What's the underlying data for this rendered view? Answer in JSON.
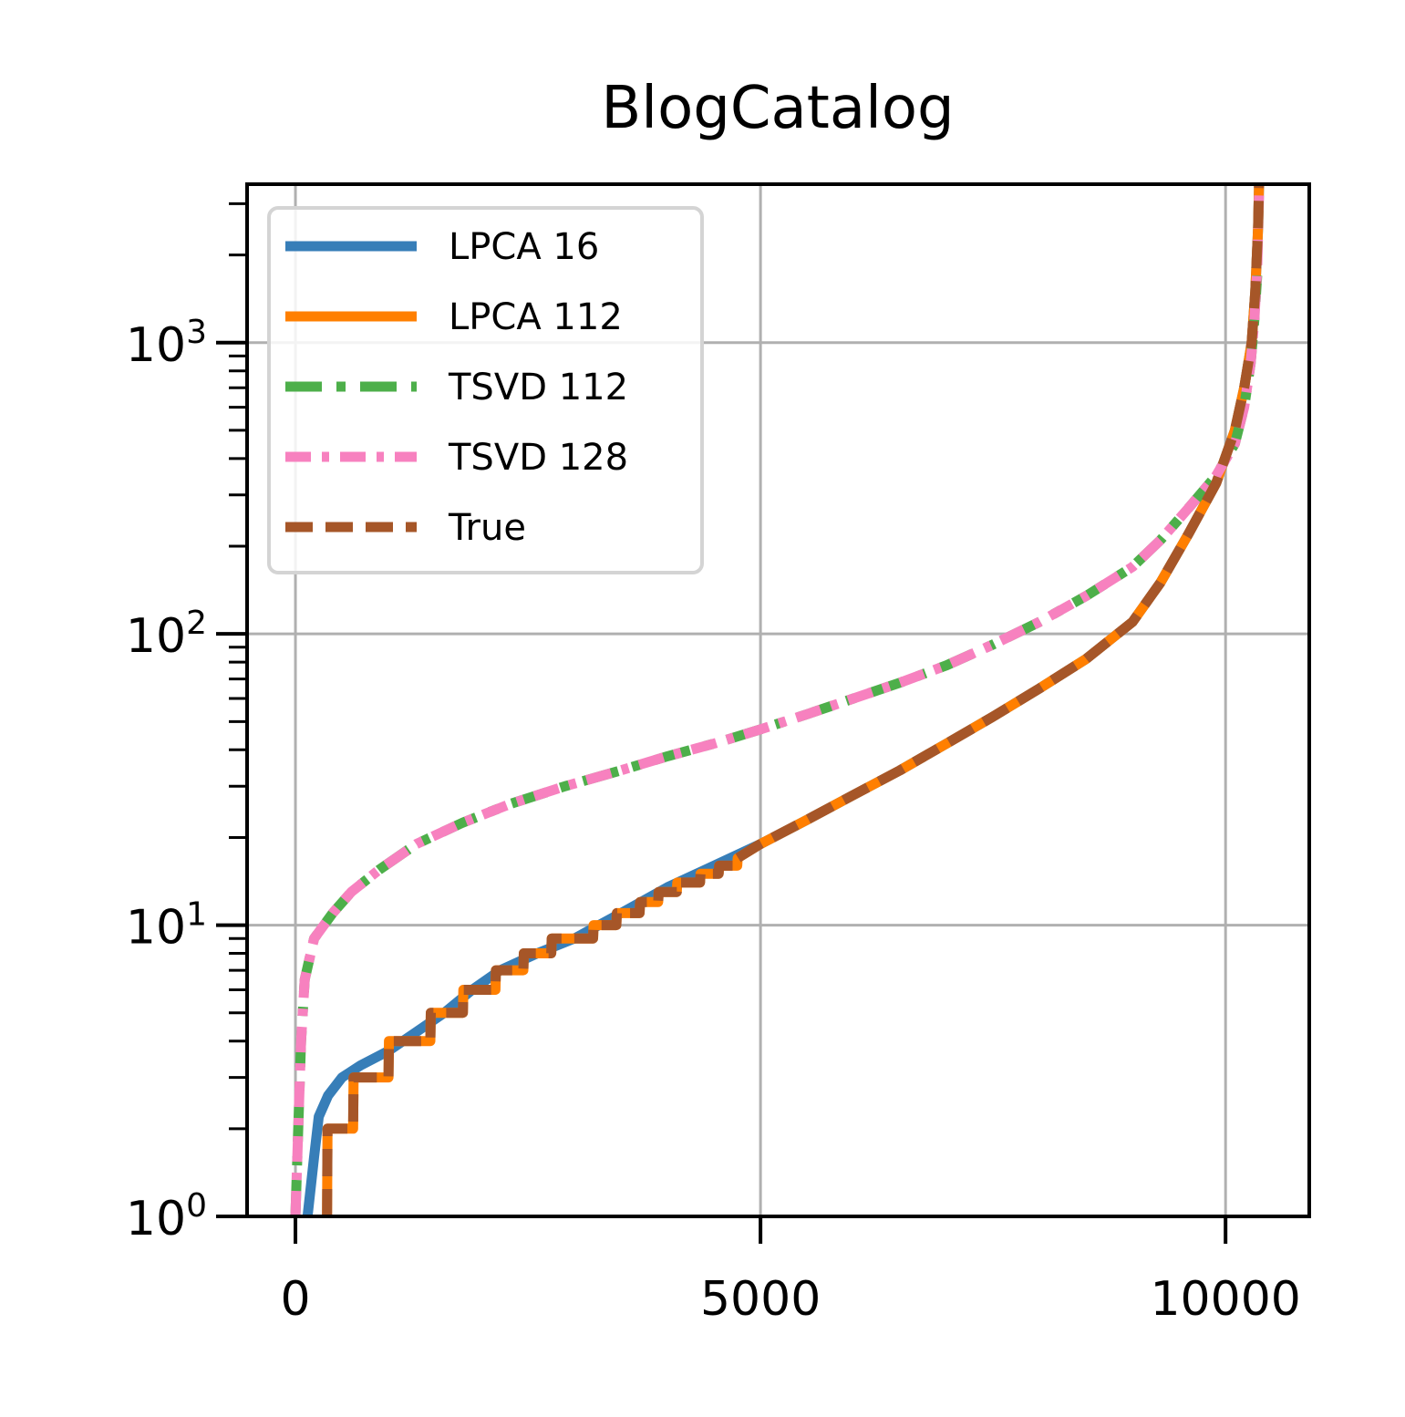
{
  "chart_data": {
    "type": "line",
    "title": "BlogCatalog",
    "xlabel": "",
    "ylabel": "",
    "xlim": [
      -520,
      10900
    ],
    "ylim": [
      1,
      3500
    ],
    "yscale": "log",
    "grid": true,
    "legend_position": "top-left",
    "x_ticks": [
      0,
      5000,
      10000
    ],
    "x_tick_labels": [
      "0",
      "5000",
      "10000"
    ],
    "y_ticks": [
      1,
      10,
      100,
      1000
    ],
    "y_tick_labels": [
      {
        "base": "10",
        "exp": "0"
      },
      {
        "base": "10",
        "exp": "1"
      },
      {
        "base": "10",
        "exp": "2"
      },
      {
        "base": "10",
        "exp": "3"
      }
    ],
    "series": [
      {
        "name": "LPCA 16",
        "color": "#377eb8",
        "dash": "solid",
        "step": false,
        "points": [
          [
            130,
            1
          ],
          [
            200,
            1.6
          ],
          [
            250,
            2.2
          ],
          [
            350,
            2.6
          ],
          [
            500,
            3.0
          ],
          [
            700,
            3.3
          ],
          [
            1000,
            3.7
          ],
          [
            1300,
            4.3
          ],
          [
            1600,
            5.0
          ],
          [
            1900,
            6.0
          ],
          [
            2200,
            7.0
          ],
          [
            2600,
            8.0
          ],
          [
            3000,
            9.0
          ],
          [
            3500,
            11
          ],
          [
            4000,
            13.5
          ],
          [
            4500,
            16
          ],
          [
            5000,
            19
          ],
          [
            5500,
            23
          ],
          [
            6000,
            28
          ],
          [
            6500,
            34
          ],
          [
            7000,
            42
          ],
          [
            7500,
            52
          ],
          [
            8000,
            65
          ],
          [
            8500,
            82
          ],
          [
            9000,
            110
          ],
          [
            9300,
            150
          ],
          [
            9600,
            220
          ],
          [
            9900,
            330
          ],
          [
            10100,
            500
          ],
          [
            10200,
            700
          ],
          [
            10280,
            1000
          ],
          [
            10320,
            1500
          ],
          [
            10350,
            2500
          ],
          [
            10360,
            3500
          ]
        ]
      },
      {
        "name": "LPCA 112",
        "color": "#ff7f00",
        "dash": "solid",
        "step": false,
        "points": [
          [
            340,
            1
          ],
          [
            345,
            2
          ],
          [
            620,
            2
          ],
          [
            625,
            3
          ],
          [
            1000,
            3
          ],
          [
            1005,
            4
          ],
          [
            1450,
            4
          ],
          [
            1455,
            5
          ],
          [
            1800,
            5
          ],
          [
            1805,
            6
          ],
          [
            2150,
            6
          ],
          [
            2155,
            7
          ],
          [
            2450,
            7
          ],
          [
            2455,
            8
          ],
          [
            2750,
            8
          ],
          [
            2755,
            9
          ],
          [
            3200,
            9
          ],
          [
            3205,
            10
          ],
          [
            3450,
            10
          ],
          [
            3455,
            11
          ],
          [
            3700,
            11
          ],
          [
            3705,
            12
          ],
          [
            3900,
            12
          ],
          [
            3905,
            13
          ],
          [
            4100,
            13
          ],
          [
            4105,
            14
          ],
          [
            4350,
            14
          ],
          [
            4355,
            15
          ],
          [
            4550,
            15
          ],
          [
            4555,
            16
          ],
          [
            4750,
            16
          ],
          [
            4755,
            17
          ],
          [
            5000,
            19
          ],
          [
            5500,
            23
          ],
          [
            6000,
            28
          ],
          [
            6500,
            34
          ],
          [
            7000,
            42
          ],
          [
            7500,
            52
          ],
          [
            8000,
            65
          ],
          [
            8500,
            82
          ],
          [
            9000,
            110
          ],
          [
            9300,
            150
          ],
          [
            9600,
            220
          ],
          [
            9900,
            330
          ],
          [
            10100,
            500
          ],
          [
            10200,
            700
          ],
          [
            10280,
            1000
          ],
          [
            10320,
            1500
          ],
          [
            10350,
            2500
          ],
          [
            10360,
            3500
          ]
        ]
      },
      {
        "name": "TSVD 112",
        "color": "#4daf4a",
        "dash": "long-dash-dot",
        "step": false,
        "points": [
          [
            0,
            1
          ],
          [
            30,
            2
          ],
          [
            60,
            4
          ],
          [
            100,
            6.5
          ],
          [
            200,
            9
          ],
          [
            400,
            11
          ],
          [
            600,
            13
          ],
          [
            900,
            15.5
          ],
          [
            1300,
            19
          ],
          [
            1800,
            22.5
          ],
          [
            2300,
            26
          ],
          [
            2900,
            30
          ],
          [
            3500,
            34
          ],
          [
            4000,
            38
          ],
          [
            4500,
            42
          ],
          [
            5000,
            47
          ],
          [
            5500,
            53
          ],
          [
            6000,
            60
          ],
          [
            6500,
            68
          ],
          [
            7000,
            78
          ],
          [
            7500,
            92
          ],
          [
            8000,
            110
          ],
          [
            8500,
            135
          ],
          [
            9000,
            170
          ],
          [
            9300,
            210
          ],
          [
            9600,
            270
          ],
          [
            9900,
            350
          ],
          [
            10100,
            450
          ],
          [
            10200,
            600
          ],
          [
            10270,
            850
          ],
          [
            10310,
            1200
          ],
          [
            10340,
            1700
          ]
        ]
      },
      {
        "name": "TSVD 128",
        "color": "#f781bf",
        "dash": "dash-dot",
        "step": false,
        "points": [
          [
            0,
            1
          ],
          [
            30,
            2
          ],
          [
            60,
            4
          ],
          [
            100,
            6.5
          ],
          [
            200,
            9
          ],
          [
            400,
            11
          ],
          [
            600,
            13
          ],
          [
            900,
            15.5
          ],
          [
            1300,
            19
          ],
          [
            1800,
            22.5
          ],
          [
            2300,
            26
          ],
          [
            2900,
            30
          ],
          [
            3500,
            34
          ],
          [
            4000,
            38
          ],
          [
            4500,
            42
          ],
          [
            5000,
            47
          ],
          [
            5500,
            53
          ],
          [
            6000,
            60
          ],
          [
            6500,
            68
          ],
          [
            7000,
            78
          ],
          [
            7500,
            92
          ],
          [
            8000,
            110
          ],
          [
            8500,
            135
          ],
          [
            9000,
            170
          ],
          [
            9300,
            210
          ],
          [
            9600,
            270
          ],
          [
            9900,
            350
          ],
          [
            10100,
            450
          ],
          [
            10200,
            600
          ],
          [
            10270,
            850
          ],
          [
            10310,
            1200
          ],
          [
            10340,
            1800
          ],
          [
            10360,
            3200
          ]
        ]
      },
      {
        "name": "True",
        "color": "#a65628",
        "dash": "dashed",
        "step": false,
        "points": [
          [
            340,
            1
          ],
          [
            345,
            2
          ],
          [
            620,
            2
          ],
          [
            625,
            3
          ],
          [
            1000,
            3
          ],
          [
            1005,
            4
          ],
          [
            1450,
            4
          ],
          [
            1455,
            5
          ],
          [
            1800,
            5
          ],
          [
            1805,
            6
          ],
          [
            2150,
            6
          ],
          [
            2155,
            7
          ],
          [
            2450,
            7
          ],
          [
            2455,
            8
          ],
          [
            2750,
            8
          ],
          [
            2755,
            9
          ],
          [
            3200,
            9
          ],
          [
            3205,
            10
          ],
          [
            3450,
            10
          ],
          [
            3455,
            11
          ],
          [
            3700,
            11
          ],
          [
            3705,
            12
          ],
          [
            3900,
            12
          ],
          [
            3905,
            13
          ],
          [
            4100,
            13
          ],
          [
            4105,
            14
          ],
          [
            4350,
            14
          ],
          [
            4355,
            15
          ],
          [
            4550,
            15
          ],
          [
            4555,
            16
          ],
          [
            4750,
            16
          ],
          [
            4755,
            17
          ],
          [
            5000,
            19
          ],
          [
            5500,
            23
          ],
          [
            6000,
            28
          ],
          [
            6500,
            34
          ],
          [
            7000,
            42
          ],
          [
            7500,
            52
          ],
          [
            8000,
            65
          ],
          [
            8500,
            82
          ],
          [
            9000,
            110
          ],
          [
            9300,
            150
          ],
          [
            9600,
            220
          ],
          [
            9900,
            330
          ],
          [
            10100,
            500
          ],
          [
            10200,
            700
          ],
          [
            10280,
            1000
          ],
          [
            10320,
            1500
          ],
          [
            10350,
            2500
          ],
          [
            10360,
            3500
          ]
        ]
      }
    ]
  }
}
